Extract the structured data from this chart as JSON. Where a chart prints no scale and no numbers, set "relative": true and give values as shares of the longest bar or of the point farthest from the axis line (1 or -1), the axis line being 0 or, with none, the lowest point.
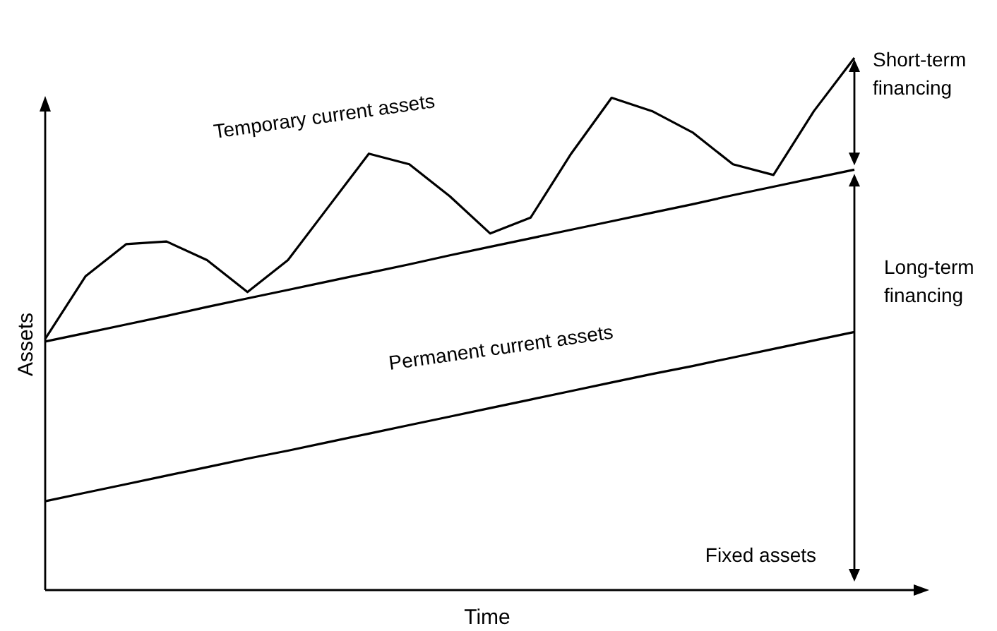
{
  "chart_data": {
    "type": "line",
    "relative": true,
    "xlabel": "Time",
    "ylabel": "Assets",
    "marker": "none",
    "line_style": "solid",
    "categories": [
      null,
      null,
      null,
      null,
      null,
      null,
      null,
      null,
      null,
      null,
      null,
      null,
      null,
      null,
      null,
      null,
      null,
      null,
      null,
      null,
      null
    ],
    "annotations": [
      "Temporary current assets",
      "Permanent current assets",
      "Fixed assets",
      "Short-term financing",
      "Long-term financing"
    ],
    "series": [
      {
        "color": "#000000",
        "values": [
          0.167,
          0.183,
          0.199,
          0.215,
          0.231,
          0.247,
          0.262,
          0.278,
          0.294,
          0.31,
          0.326,
          0.342,
          0.358,
          0.374,
          0.39,
          0.406,
          0.421,
          0.437,
          0.453,
          0.469,
          0.485
        ]
      },
      {
        "color": "#000000",
        "values": [
          0.467,
          0.483,
          0.499,
          0.515,
          0.532,
          0.548,
          0.564,
          0.58,
          0.596,
          0.612,
          0.629,
          0.645,
          0.661,
          0.677,
          0.693,
          0.709,
          0.725,
          0.742,
          0.758,
          0.774,
          0.79
        ]
      },
      {
        "color": "#000000",
        "values": [
          0.472,
          0.59,
          0.65,
          0.655,
          0.62,
          0.56,
          0.62,
          0.72,
          0.82,
          0.8,
          0.74,
          0.67,
          0.7,
          0.82,
          0.925,
          0.9,
          0.86,
          0.8,
          0.78,
          0.9,
          1.0
        ]
      }
    ]
  }
}
